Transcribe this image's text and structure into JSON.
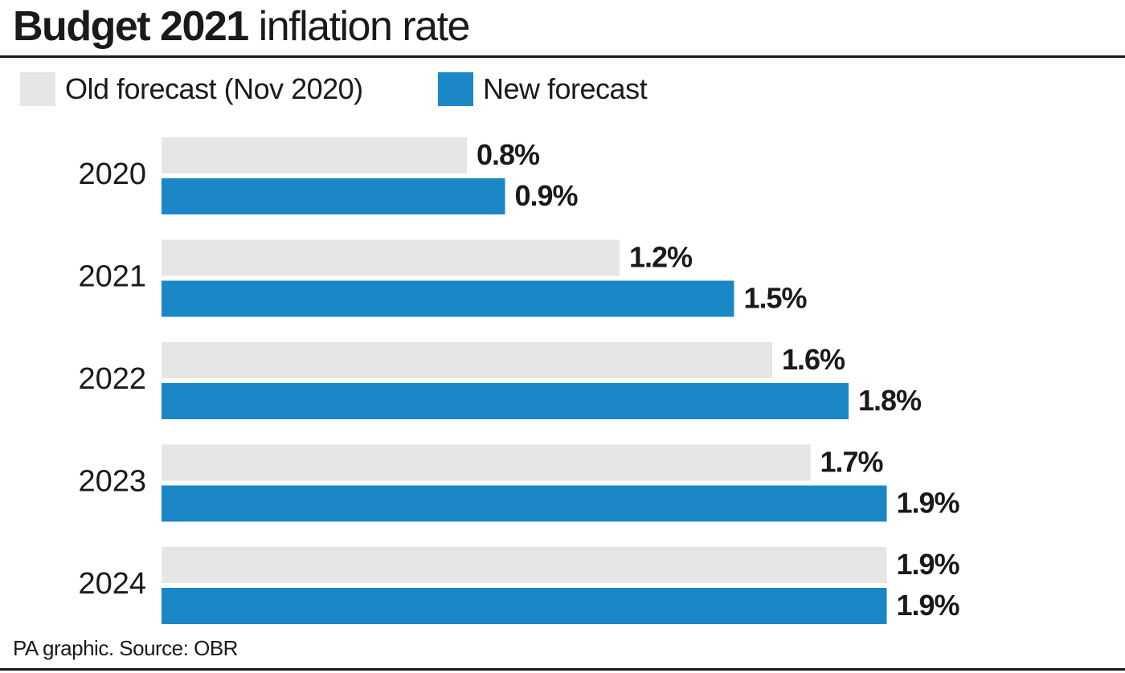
{
  "title": {
    "bold": "Budget 2021",
    "light": " inflation rate"
  },
  "legend": [
    {
      "label": "Old forecast (Nov 2020)",
      "color": "#e6e6e6"
    },
    {
      "label": "New forecast",
      "color": "#1a87c6"
    }
  ],
  "source": "PA graphic. Source: OBR",
  "chart_data": {
    "type": "bar",
    "orientation": "horizontal",
    "categories": [
      "2020",
      "2021",
      "2022",
      "2023",
      "2024"
    ],
    "series": [
      {
        "name": "Old forecast (Nov 2020)",
        "color": "#e6e6e6",
        "values": [
          0.8,
          1.2,
          1.6,
          1.7,
          1.9
        ],
        "labels": [
          "0.8%",
          "1.2%",
          "1.6%",
          "1.7%",
          "1.9%"
        ]
      },
      {
        "name": "New forecast",
        "color": "#1a87c6",
        "values": [
          0.9,
          1.5,
          1.8,
          1.9,
          1.9
        ],
        "labels": [
          "0.9%",
          "1.5%",
          "1.8%",
          "1.9%",
          "1.9%"
        ]
      }
    ],
    "title": "Budget 2021 inflation rate",
    "xlim": [
      0,
      1.9
    ],
    "grid": false,
    "legend_position": "top-left"
  }
}
